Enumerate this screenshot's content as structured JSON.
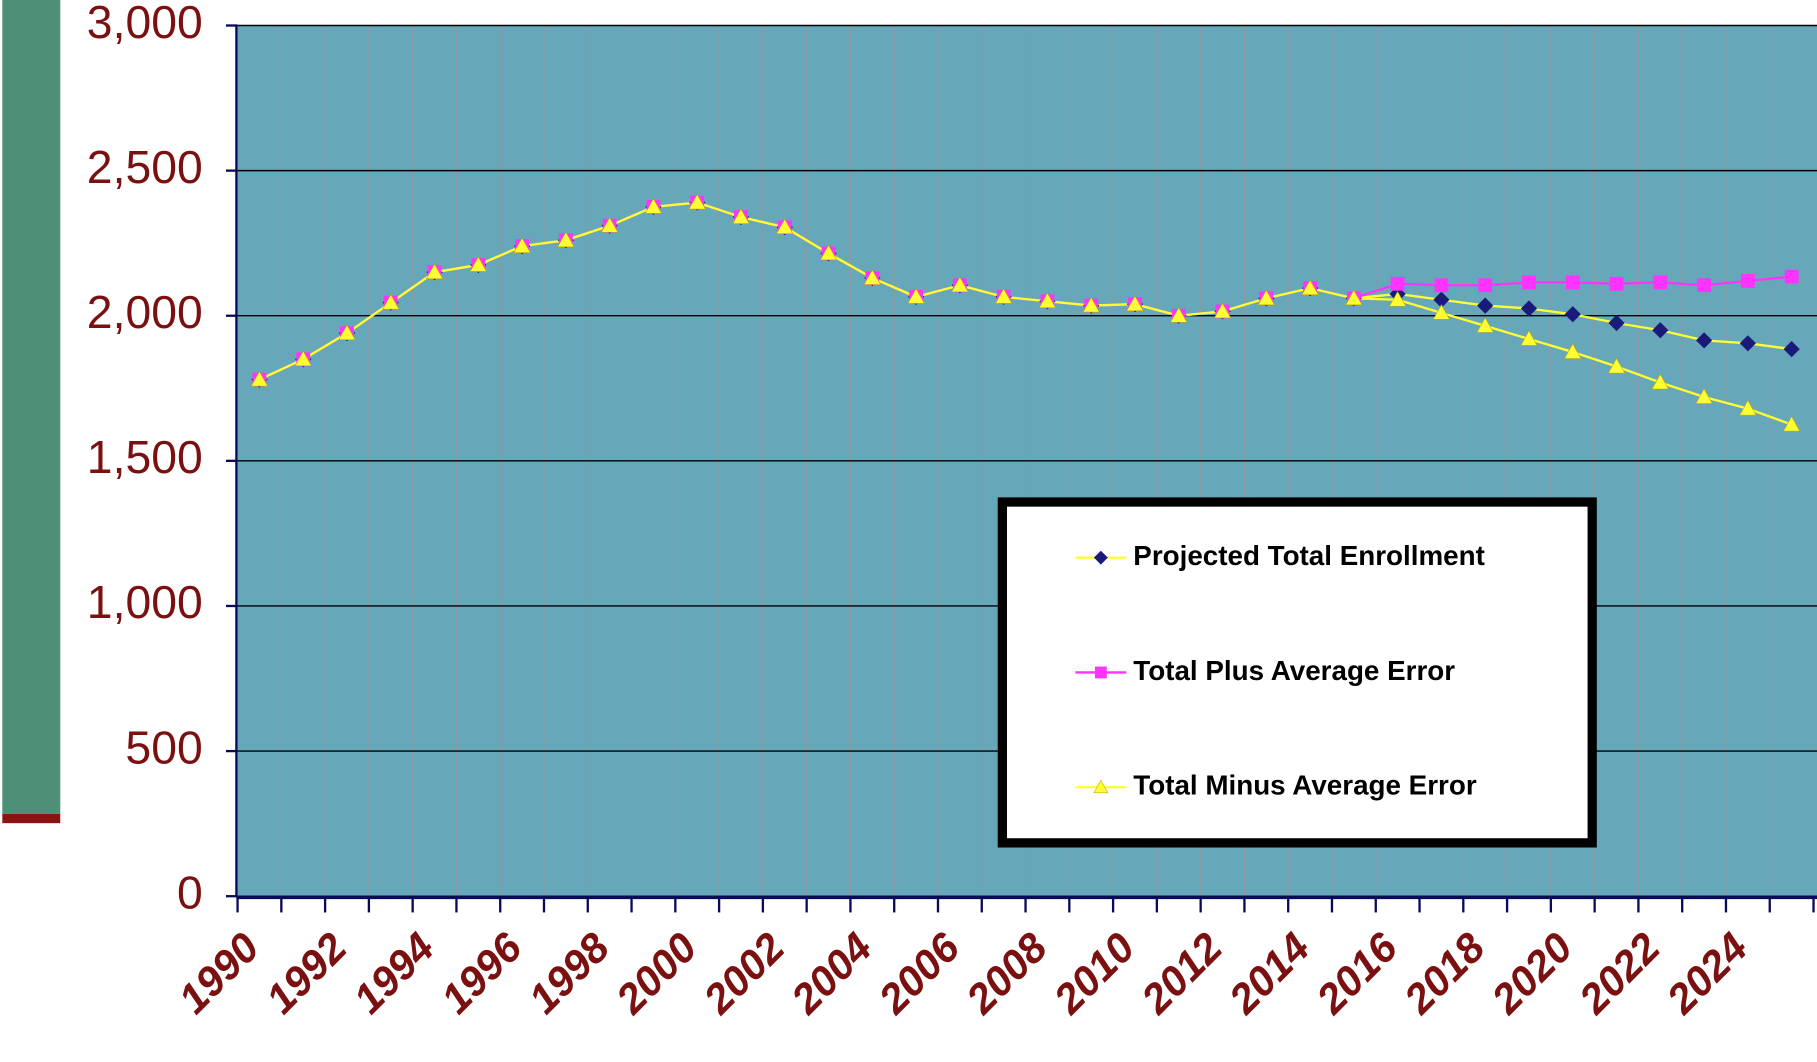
{
  "chart_data": {
    "type": "line",
    "categories": [
      "1990",
      null,
      "1992",
      null,
      "1994",
      null,
      "1996",
      null,
      "1998",
      null,
      "2000",
      null,
      "2002",
      null,
      "2004",
      null,
      "2006",
      null,
      "2008",
      null,
      "2010",
      null,
      "2012",
      null,
      "2014",
      null,
      "2016",
      null,
      "2018",
      null,
      "2020",
      null,
      "2022",
      null,
      "2024",
      null
    ],
    "series": [
      {
        "name": "Projected Total Enrollment",
        "color": "#ffff33",
        "marker": "diamond",
        "marker_color": "#1a1a7a",
        "values": [
          1780,
          1850,
          1940,
          2045,
          2150,
          2175,
          2240,
          2260,
          2310,
          2375,
          2390,
          2340,
          2305,
          2215,
          2130,
          2065,
          2105,
          2065,
          2050,
          2035,
          2040,
          2000,
          2015,
          2060,
          2095,
          2060,
          2075,
          2055,
          2035,
          2025,
          2005,
          1975,
          1950,
          1915,
          1905,
          1885
        ]
      },
      {
        "name": "Total Plus Average Error",
        "color": "#ff33ff",
        "marker": "square",
        "marker_color": "#ff33ff",
        "values": [
          1780,
          1850,
          1940,
          2045,
          2150,
          2175,
          2240,
          2260,
          2310,
          2375,
          2390,
          2340,
          2305,
          2215,
          2130,
          2065,
          2105,
          2065,
          2050,
          2035,
          2040,
          2000,
          2015,
          2060,
          2095,
          2060,
          2110,
          2105,
          2105,
          2115,
          2115,
          2110,
          2115,
          2105,
          2120,
          2135
        ]
      },
      {
        "name": "Total Minus Average Error",
        "color": "#ffff33",
        "marker": "triangle",
        "marker_color": "#ffff33",
        "values": [
          1780,
          1850,
          1940,
          2045,
          2150,
          2175,
          2240,
          2260,
          2310,
          2375,
          2390,
          2340,
          2305,
          2215,
          2130,
          2065,
          2105,
          2065,
          2050,
          2035,
          2040,
          2000,
          2015,
          2060,
          2095,
          2060,
          2055,
          2010,
          1965,
          1920,
          1875,
          1825,
          1770,
          1720,
          1680,
          1625
        ]
      }
    ],
    "ylim": [
      0,
      3000
    ],
    "yticks": [
      0,
      500,
      {
        "value": 1000,
        "label": "1,000"
      },
      {
        "value": 1500,
        "label": "1,500"
      },
      {
        "value": 2000,
        "label": "2,000"
      },
      {
        "value": 2500,
        "label": "2,500"
      },
      {
        "value": 3000,
        "label": "3,000"
      }
    ],
    "grid": true
  }
}
